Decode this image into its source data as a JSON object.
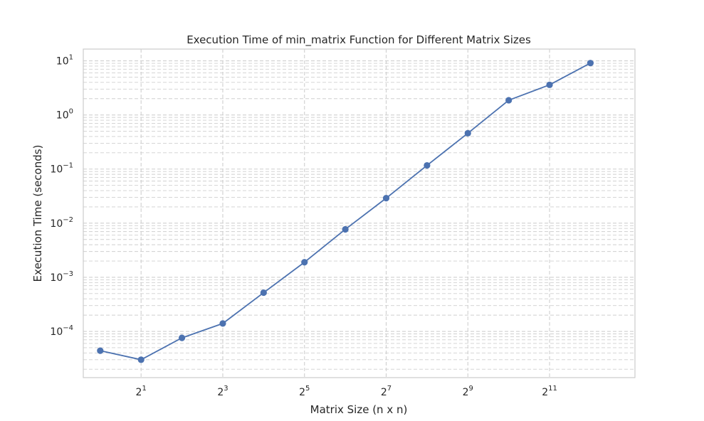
{
  "chart_data": {
    "type": "line",
    "title": "Execution Time of min_matrix Function for Different Matrix Sizes",
    "xlabel": "Matrix Size (n x n)",
    "ylabel": "Execution Time (seconds)",
    "x_scale": "log2",
    "y_scale": "log10",
    "xlim": [
      0.75,
      8722
    ],
    "ylim": [
      1.4e-05,
      16.5
    ],
    "x_ticks": [
      {
        "value": 2,
        "base": "2",
        "exp": "1"
      },
      {
        "value": 8,
        "base": "2",
        "exp": "3"
      },
      {
        "value": 32,
        "base": "2",
        "exp": "5"
      },
      {
        "value": 128,
        "base": "2",
        "exp": "7"
      },
      {
        "value": 512,
        "base": "2",
        "exp": "9"
      },
      {
        "value": 2048,
        "base": "2",
        "exp": "11"
      }
    ],
    "y_ticks": [
      {
        "value": 0.0001,
        "base": "10",
        "exp": "−4"
      },
      {
        "value": 0.001,
        "base": "10",
        "exp": "−3"
      },
      {
        "value": 0.01,
        "base": "10",
        "exp": "−2"
      },
      {
        "value": 0.1,
        "base": "10",
        "exp": "−1"
      },
      {
        "value": 1,
        "base": "10",
        "exp": "0"
      },
      {
        "value": 10,
        "base": "10",
        "exp": "1"
      }
    ],
    "grid": true,
    "grid_style": "dashed",
    "series": [
      {
        "color": "#4c72b0",
        "marker": "circle",
        "x": [
          1,
          2,
          4,
          8,
          16,
          32,
          64,
          128,
          256,
          512,
          1024,
          2048,
          4096
        ],
        "y": [
          4.4e-05,
          3e-05,
          7.6e-05,
          0.00014,
          0.00052,
          0.0019,
          0.0077,
          0.029,
          0.117,
          0.46,
          1.87,
          3.6,
          9.1
        ]
      }
    ]
  }
}
